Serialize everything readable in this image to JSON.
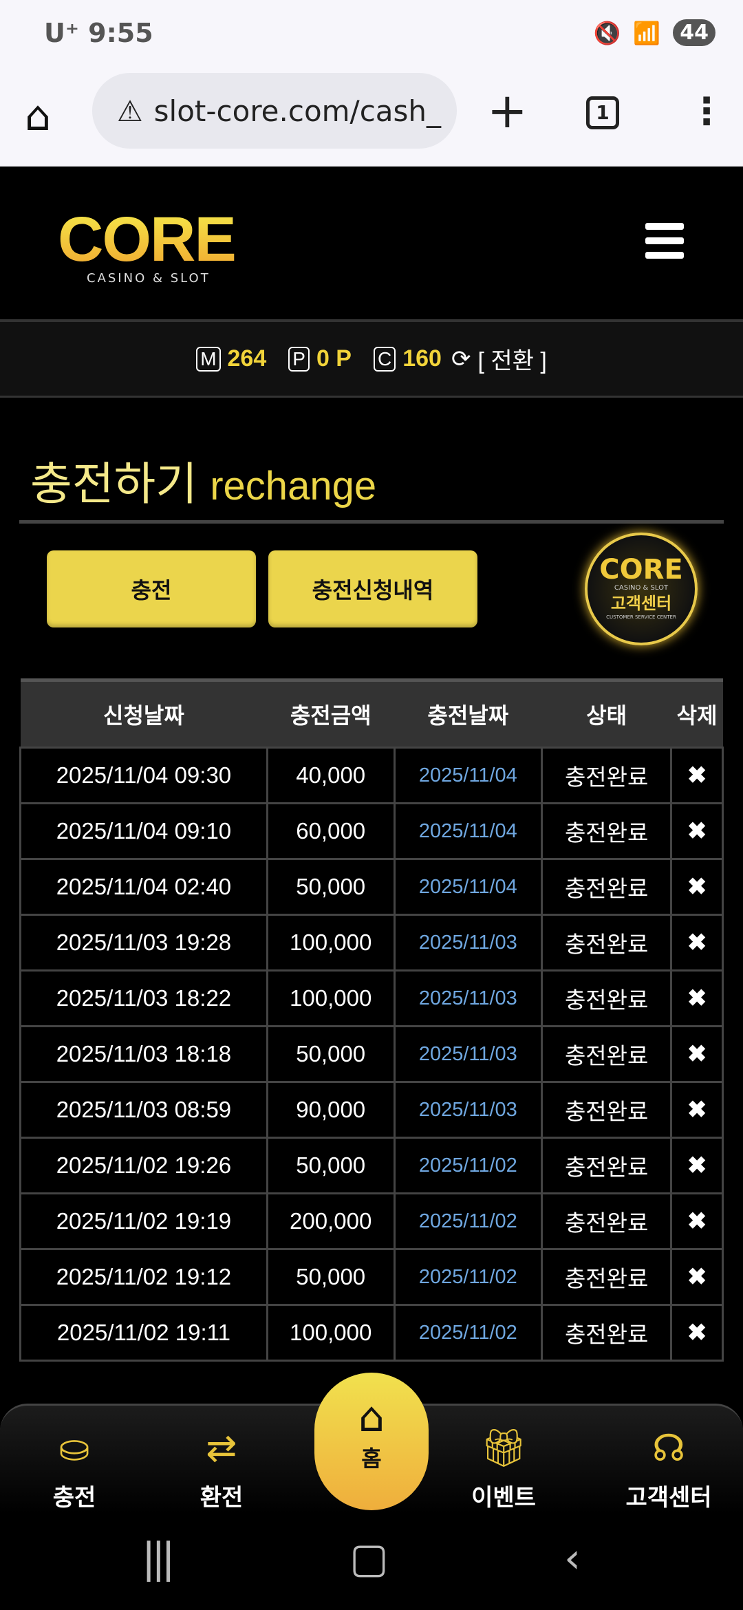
{
  "status": {
    "carrier": "U⁺",
    "time": "9:55",
    "battery": "44"
  },
  "browser": {
    "url": "slot-core.com/cash_",
    "tab_count": "1"
  },
  "header": {
    "logo": "CORE",
    "logo_sub": "CASINO & SLOT"
  },
  "balance": {
    "m_label": "M",
    "m_value": "264",
    "p_label": "P",
    "p_value": "0 P",
    "c_label": "C",
    "c_value": "160",
    "convert": "[ 전환 ]"
  },
  "page": {
    "title_ko": "충전하기",
    "title_en": "rechange"
  },
  "buttons": {
    "charge": "충전",
    "history": "충전신청내역"
  },
  "table": {
    "headers": [
      "신청날짜",
      "충전금액",
      "충전날짜",
      "상태",
      "삭제"
    ],
    "rows": [
      [
        "2025/11/04 09:30",
        "40,000",
        "2025/11/04",
        "충전완료"
      ],
      [
        "2025/11/04 09:10",
        "60,000",
        "2025/11/04",
        "충전완료"
      ],
      [
        "2025/11/04 02:40",
        "50,000",
        "2025/11/04",
        "충전완료"
      ],
      [
        "2025/11/03 19:28",
        "100,000",
        "2025/11/03",
        "충전완료"
      ],
      [
        "2025/11/03 18:22",
        "100,000",
        "2025/11/03",
        "충전완료"
      ],
      [
        "2025/11/03 18:18",
        "50,000",
        "2025/11/03",
        "충전완료"
      ],
      [
        "2025/11/03 08:59",
        "90,000",
        "2025/11/03",
        "충전완료"
      ],
      [
        "2025/11/02 19:26",
        "50,000",
        "2025/11/02",
        "충전완료"
      ],
      [
        "2025/11/02 19:19",
        "200,000",
        "2025/11/02",
        "충전완료"
      ],
      [
        "2025/11/02 19:12",
        "50,000",
        "2025/11/02",
        "충전완료"
      ],
      [
        "2025/11/02 19:11",
        "100,000",
        "2025/11/02",
        "충전완료"
      ]
    ],
    "delete_glyph": "✖"
  },
  "cs_badge": {
    "logo": "CORE",
    "sub": "CASINO & SLOT",
    "label": "고객센터",
    "en": "CUSTOMER SERVICE CENTER"
  },
  "nav": {
    "charge": "충전",
    "exchange": "환전",
    "home": "홈",
    "event": "이벤트",
    "support": "고객센터"
  },
  "colors": {
    "accent": "#ebd54c",
    "date_blue": "#6fa7e0",
    "bg": "#000000"
  }
}
